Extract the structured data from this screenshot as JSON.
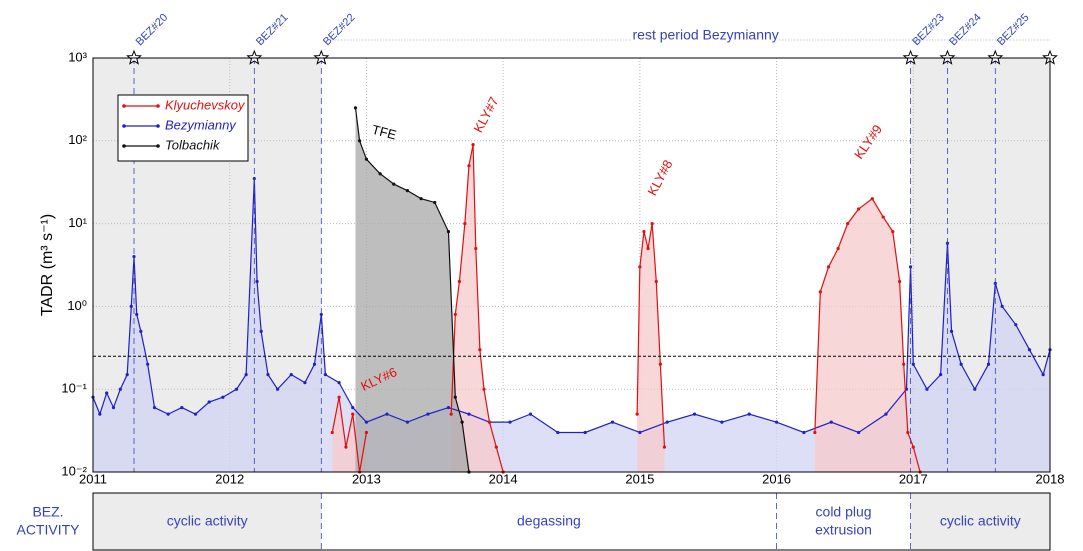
{
  "chart_data": {
    "type": "line",
    "ylabel": "TADR (m³ s⁻¹)",
    "log_y": true,
    "grid": true,
    "legend": "upper left",
    "xlim": [
      2011,
      2018
    ],
    "xticks": [
      2011,
      2012,
      2013,
      2014,
      2015,
      2016,
      2017,
      2018
    ],
    "ylim": [
      0.01,
      1000
    ],
    "yticks": [
      {
        "value": 0.01,
        "label": "10⁻²"
      },
      {
        "value": 0.1,
        "label": "10⁻¹"
      },
      {
        "value": 1,
        "label": "10⁰"
      },
      {
        "value": 10,
        "label": "10¹"
      },
      {
        "value": 100,
        "label": "10²"
      },
      {
        "value": 1000,
        "label": "10³"
      }
    ],
    "threshold": 0.25,
    "series": [
      {
        "name": "Klyuchevskoy",
        "color": "#e01010",
        "fill": "#f6c9cc",
        "x": [
          2012.75,
          2012.8,
          2012.85,
          2012.9,
          2012.95,
          2013.0,
          2013.3,
          2013.62,
          2013.65,
          2013.68,
          2013.72,
          2013.75,
          2013.78,
          2013.8,
          2013.83,
          2013.86,
          2013.9,
          2013.95,
          2014.0,
          2014.5,
          2014.98,
          2015.0,
          2015.03,
          2015.06,
          2015.09,
          2015.12,
          2015.15,
          2015.18,
          2015.7,
          2016.28,
          2016.32,
          2016.38,
          2016.45,
          2016.52,
          2016.6,
          2016.7,
          2016.78,
          2016.85,
          2016.9,
          2016.93,
          2016.96,
          2017.0,
          2017.05
        ],
        "values": [
          0.03,
          0.08,
          0.02,
          0.05,
          0.01,
          0.03,
          null,
          0.05,
          0.8,
          2,
          10,
          50,
          90,
          5,
          0.3,
          0.1,
          0.04,
          0.02,
          0.01,
          null,
          0.05,
          3,
          8,
          5,
          10,
          2,
          0.2,
          0.02,
          null,
          0.03,
          1.5,
          3,
          5,
          10,
          15,
          20,
          12,
          8,
          2,
          0.2,
          0.03,
          0.02,
          0.01
        ]
      },
      {
        "name": "Bezymianny",
        "color": "#2020c8",
        "fill": "#d2d4f4",
        "x": [
          2011.0,
          2011.05,
          2011.1,
          2011.15,
          2011.2,
          2011.25,
          2011.28,
          2011.3,
          2011.32,
          2011.35,
          2011.4,
          2011.45,
          2011.55,
          2011.65,
          2011.75,
          2011.85,
          2011.95,
          2012.05,
          2012.12,
          2012.18,
          2012.2,
          2012.23,
          2012.28,
          2012.35,
          2012.45,
          2012.55,
          2012.62,
          2012.67,
          2012.7,
          2012.8,
          2012.9,
          2013.0,
          2013.15,
          2013.3,
          2013.45,
          2013.6,
          2013.75,
          2013.9,
          2014.05,
          2014.2,
          2014.4,
          2014.6,
          2014.8,
          2015.0,
          2015.2,
          2015.4,
          2015.6,
          2015.8,
          2016.0,
          2016.2,
          2016.4,
          2016.6,
          2016.8,
          2016.95,
          2016.98,
          2017.0,
          2017.1,
          2017.2,
          2017.25,
          2017.28,
          2017.35,
          2017.45,
          2017.55,
          2017.6,
          2017.65,
          2017.75,
          2017.85,
          2017.95,
          2018.0
        ],
        "values": [
          0.08,
          0.05,
          0.09,
          0.06,
          0.1,
          0.15,
          1.0,
          4.0,
          0.8,
          0.5,
          0.2,
          0.06,
          0.05,
          0.06,
          0.05,
          0.07,
          0.08,
          0.1,
          0.15,
          35,
          2,
          0.5,
          0.15,
          0.1,
          0.15,
          0.12,
          0.2,
          0.8,
          0.15,
          0.12,
          0.06,
          0.04,
          0.05,
          0.04,
          0.05,
          0.06,
          0.05,
          0.04,
          0.04,
          0.05,
          0.03,
          0.03,
          0.04,
          0.03,
          0.04,
          0.05,
          0.04,
          0.05,
          0.04,
          0.03,
          0.04,
          0.03,
          0.05,
          0.1,
          3.0,
          0.2,
          0.1,
          0.15,
          5.8,
          0.5,
          0.2,
          0.1,
          0.2,
          1.9,
          1.0,
          0.6,
          0.3,
          0.15,
          0.3
        ]
      },
      {
        "name": "Tolbachik",
        "color": "#111111",
        "fill": "#a8a8a8",
        "x": [
          2012.92,
          2012.95,
          2013.0,
          2013.1,
          2013.2,
          2013.3,
          2013.4,
          2013.5,
          2013.6,
          2013.65,
          2013.7,
          2013.75
        ],
        "values": [
          250,
          100,
          60,
          40,
          30,
          25,
          20,
          18,
          8,
          0.08,
          0.04,
          0.01
        ]
      }
    ],
    "events": [
      {
        "label": "BEZ#20",
        "x": 2011.3
      },
      {
        "label": "BEZ#21",
        "x": 2012.18
      },
      {
        "label": "BEZ#22",
        "x": 2012.67
      },
      {
        "label": "BEZ#23",
        "x": 2016.98
      },
      {
        "label": "BEZ#24",
        "x": 2017.25
      },
      {
        "label": "BEZ#25",
        "x": 2017.6
      },
      {
        "x": 2018.0
      }
    ],
    "rest_period": "rest period Bezymianny",
    "annotations": [
      "TFE",
      "KLY#6",
      "KLY#7",
      "KLY#8",
      "KLY#9"
    ],
    "activity_title": [
      "BEZ.",
      "ACTIVITY"
    ],
    "phases": [
      {
        "label": [
          "cyclic activity"
        ],
        "start": 2011,
        "end": 2012.67,
        "shaded": true
      },
      {
        "label": [
          "degassing"
        ],
        "start": 2012.67,
        "end": 2016.0,
        "shaded": false
      },
      {
        "label": [
          "cold plug",
          "extrusion"
        ],
        "start": 2016.0,
        "end": 2016.98,
        "shaded": false
      },
      {
        "label": [
          "cyclic activity"
        ],
        "start": 2016.98,
        "end": 2018,
        "shaded": true
      }
    ]
  }
}
